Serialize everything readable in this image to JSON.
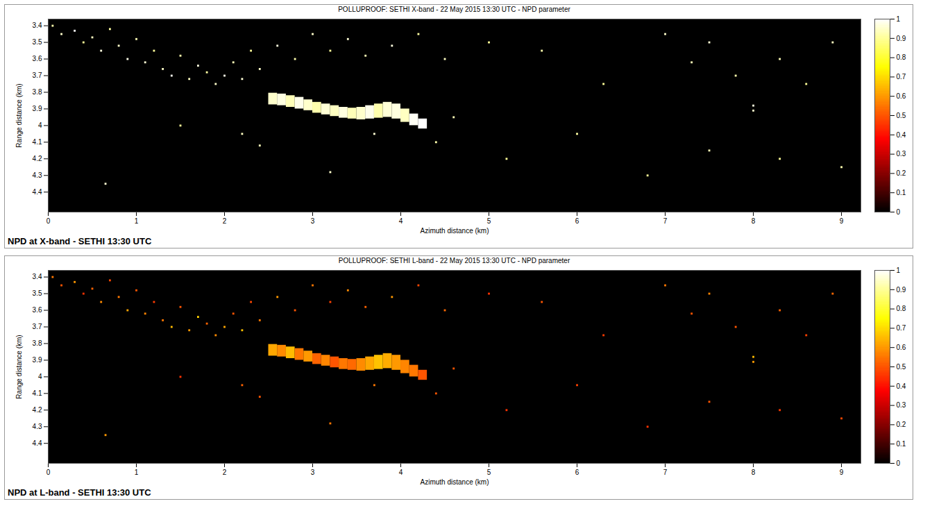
{
  "chart_data": [
    {
      "type": "heatmap",
      "title": "POLLUPROOF: SETHI X-band - 22 May 2015 13:30 UTC - NPD parameter",
      "caption": "NPD at X-band - SETHI 13:30 UTC",
      "xlabel": "Azimuth distance (km)",
      "ylabel": "Range distance (km)",
      "xlim": [
        0,
        9.22
      ],
      "ylim": [
        3.36,
        4.52
      ],
      "xticks": [
        0,
        1,
        2,
        3,
        4,
        5,
        6,
        7,
        8,
        9
      ],
      "yticks": [
        3.4,
        3.5,
        3.6,
        3.7,
        3.8,
        3.9,
        4,
        4.1,
        4.2,
        4.3,
        4.4
      ],
      "colorbar_range": [
        0,
        1
      ],
      "colorbar_ticks": [
        0,
        0.1,
        0.2,
        0.3,
        0.4,
        0.5,
        0.6,
        0.7,
        0.8,
        0.9,
        1
      ],
      "cells": [
        [
          2.5,
          2.6,
          3.805,
          3.875,
          0.95
        ],
        [
          2.6,
          2.7,
          3.81,
          3.88,
          0.97
        ],
        [
          2.7,
          2.8,
          3.82,
          3.89,
          0.93
        ],
        [
          2.8,
          2.9,
          3.83,
          3.9,
          0.98
        ],
        [
          2.9,
          3.0,
          3.845,
          3.91,
          0.95
        ],
        [
          3.0,
          3.1,
          3.86,
          3.925,
          0.92
        ],
        [
          3.1,
          3.2,
          3.87,
          3.935,
          0.96
        ],
        [
          3.2,
          3.3,
          3.88,
          3.945,
          0.94
        ],
        [
          3.3,
          3.4,
          3.89,
          3.955,
          0.97
        ],
        [
          3.4,
          3.5,
          3.895,
          3.96,
          0.93
        ],
        [
          3.5,
          3.6,
          3.89,
          3.965,
          0.95
        ],
        [
          3.6,
          3.7,
          3.88,
          3.96,
          0.98
        ],
        [
          3.7,
          3.8,
          3.87,
          3.955,
          0.92
        ],
        [
          3.8,
          3.9,
          3.86,
          3.95,
          0.96
        ],
        [
          3.9,
          4.0,
          3.87,
          3.96,
          0.97
        ],
        [
          4.0,
          4.1,
          3.9,
          3.98,
          0.94
        ],
        [
          4.1,
          4.2,
          3.93,
          4.0,
          0.99
        ],
        [
          4.2,
          4.3,
          3.96,
          4.02,
          1
        ]
      ],
      "points": [
        [
          0.05,
          3.4,
          0.92
        ],
        [
          0.15,
          3.45,
          0.95
        ],
        [
          0.3,
          3.43,
          1
        ],
        [
          0.4,
          3.5,
          0.9
        ],
        [
          0.5,
          3.47,
          0.94
        ],
        [
          0.6,
          3.55,
          0.97
        ],
        [
          0.7,
          3.42,
          0.91
        ],
        [
          0.8,
          3.52,
          0.95
        ],
        [
          0.9,
          3.6,
          0.98
        ],
        [
          1.0,
          3.48,
          0.93
        ],
        [
          1.1,
          3.62,
          0.96
        ],
        [
          1.2,
          3.55,
          0.9
        ],
        [
          1.3,
          3.66,
          0.95
        ],
        [
          1.4,
          3.7,
          0.99
        ],
        [
          1.5,
          3.58,
          0.92
        ],
        [
          1.6,
          3.72,
          0.94
        ],
        [
          1.7,
          3.64,
          0.97
        ],
        [
          1.8,
          3.68,
          0.91
        ],
        [
          1.9,
          3.75,
          0.95
        ],
        [
          2.0,
          3.7,
          0.98
        ],
        [
          2.1,
          3.62,
          0.93
        ],
        [
          2.2,
          3.72,
          0.96
        ],
        [
          2.3,
          3.55,
          0.9
        ],
        [
          2.4,
          3.66,
          0.95
        ],
        [
          2.6,
          3.52,
          0.97
        ],
        [
          2.8,
          3.6,
          0.92
        ],
        [
          3.0,
          3.45,
          0.95
        ],
        [
          3.2,
          3.55,
          0.9
        ],
        [
          3.4,
          3.48,
          0.96
        ],
        [
          3.6,
          3.58,
          0.93
        ],
        [
          3.9,
          3.52,
          0.97
        ],
        [
          4.2,
          3.45,
          0.91
        ],
        [
          4.5,
          3.6,
          0.94
        ],
        [
          5.0,
          3.5,
          0.9
        ],
        [
          5.6,
          3.55,
          0.92
        ],
        [
          6.3,
          3.75,
          0.9
        ],
        [
          7.0,
          3.45,
          0.95
        ],
        [
          7.3,
          3.62,
          0.93
        ],
        [
          7.5,
          3.5,
          0.96
        ],
        [
          7.8,
          3.7,
          0.92
        ],
        [
          8.0,
          3.88,
          0.97
        ],
        [
          8.0,
          3.91,
          0.95
        ],
        [
          8.3,
          3.6,
          0.93
        ],
        [
          8.6,
          3.75,
          0.9
        ],
        [
          8.9,
          3.5,
          0.94
        ],
        [
          0.65,
          4.35,
          0.96
        ],
        [
          1.5,
          4.0,
          0.9
        ],
        [
          2.4,
          4.12,
          0.93
        ],
        [
          3.2,
          4.28,
          0.95
        ],
        [
          4.4,
          4.1,
          0.92
        ],
        [
          5.2,
          4.2,
          0.9
        ],
        [
          6.0,
          4.05,
          0.91
        ],
        [
          6.8,
          4.3,
          0.9
        ],
        [
          7.5,
          4.15,
          0.93
        ],
        [
          8.3,
          4.2,
          0.9
        ],
        [
          9.0,
          4.25,
          0.92
        ],
        [
          2.2,
          4.05,
          0.94
        ],
        [
          3.7,
          4.05,
          0.96
        ],
        [
          4.6,
          3.95,
          0.93
        ]
      ]
    },
    {
      "type": "heatmap",
      "title": "POLLUPROOF: SETHI L-band - 22 May 2015 13:30 UTC - NPD parameter",
      "caption": "NPD at L-band - SETHI 13:30 UTC",
      "xlabel": "Azimuth distance (km)",
      "ylabel": "Range distance (km)",
      "xlim": [
        0,
        9.22
      ],
      "ylim": [
        3.36,
        4.52
      ],
      "xticks": [
        0,
        1,
        2,
        3,
        4,
        5,
        6,
        7,
        8,
        9
      ],
      "yticks": [
        3.4,
        3.5,
        3.6,
        3.7,
        3.8,
        3.9,
        4,
        4.1,
        4.2,
        4.3,
        4.4
      ],
      "colorbar_range": [
        0,
        1
      ],
      "colorbar_ticks": [
        0,
        0.1,
        0.2,
        0.3,
        0.4,
        0.5,
        0.6,
        0.7,
        0.8,
        0.9,
        1
      ],
      "cells": [
        [
          2.5,
          2.6,
          3.805,
          3.875,
          0.62
        ],
        [
          2.6,
          2.7,
          3.81,
          3.88,
          0.58
        ],
        [
          2.7,
          2.8,
          3.82,
          3.89,
          0.65
        ],
        [
          2.8,
          2.9,
          3.83,
          3.9,
          0.55
        ],
        [
          2.9,
          3.0,
          3.845,
          3.91,
          0.6
        ],
        [
          3.0,
          3.1,
          3.86,
          3.925,
          0.52
        ],
        [
          3.1,
          3.2,
          3.87,
          3.935,
          0.57
        ],
        [
          3.2,
          3.3,
          3.88,
          3.945,
          0.5
        ],
        [
          3.3,
          3.4,
          3.89,
          3.955,
          0.55
        ],
        [
          3.4,
          3.5,
          3.895,
          3.96,
          0.53
        ],
        [
          3.5,
          3.6,
          3.89,
          3.965,
          0.58
        ],
        [
          3.6,
          3.7,
          3.88,
          3.96,
          0.62
        ],
        [
          3.7,
          3.8,
          3.87,
          3.955,
          0.66
        ],
        [
          3.8,
          3.9,
          3.86,
          3.95,
          0.63
        ],
        [
          3.9,
          4.0,
          3.87,
          3.96,
          0.6
        ],
        [
          4.0,
          4.1,
          3.9,
          3.98,
          0.57
        ],
        [
          4.1,
          4.2,
          3.93,
          4.0,
          0.55
        ],
        [
          4.2,
          4.3,
          3.96,
          4.02,
          0.5
        ]
      ],
      "points": [
        [
          0.05,
          3.4,
          0.55
        ],
        [
          0.15,
          3.45,
          0.5
        ],
        [
          0.3,
          3.43,
          0.6
        ],
        [
          0.4,
          3.5,
          0.45
        ],
        [
          0.5,
          3.47,
          0.52
        ],
        [
          0.6,
          3.55,
          0.58
        ],
        [
          0.7,
          3.42,
          0.48
        ],
        [
          0.8,
          3.52,
          0.55
        ],
        [
          0.9,
          3.6,
          0.62
        ],
        [
          1.0,
          3.48,
          0.5
        ],
        [
          1.1,
          3.62,
          0.57
        ],
        [
          1.2,
          3.55,
          0.46
        ],
        [
          1.3,
          3.66,
          0.55
        ],
        [
          1.4,
          3.7,
          0.65
        ],
        [
          1.5,
          3.58,
          0.5
        ],
        [
          1.6,
          3.72,
          0.6
        ],
        [
          1.7,
          3.64,
          0.68
        ],
        [
          1.8,
          3.68,
          0.52
        ],
        [
          1.9,
          3.75,
          0.58
        ],
        [
          2.0,
          3.7,
          0.62
        ],
        [
          2.1,
          3.62,
          0.5
        ],
        [
          2.2,
          3.72,
          0.66
        ],
        [
          2.3,
          3.55,
          0.48
        ],
        [
          2.4,
          3.66,
          0.55
        ],
        [
          2.6,
          3.52,
          0.6
        ],
        [
          2.8,
          3.6,
          0.5
        ],
        [
          3.0,
          3.45,
          0.55
        ],
        [
          3.2,
          3.55,
          0.47
        ],
        [
          3.4,
          3.48,
          0.58
        ],
        [
          3.6,
          3.58,
          0.52
        ],
        [
          3.9,
          3.52,
          0.6
        ],
        [
          4.2,
          3.45,
          0.48
        ],
        [
          4.5,
          3.6,
          0.53
        ],
        [
          5.0,
          3.5,
          0.45
        ],
        [
          5.6,
          3.55,
          0.5
        ],
        [
          6.3,
          3.75,
          0.46
        ],
        [
          7.0,
          3.45,
          0.55
        ],
        [
          7.3,
          3.62,
          0.5
        ],
        [
          7.5,
          3.5,
          0.57
        ],
        [
          7.8,
          3.7,
          0.5
        ],
        [
          8.0,
          3.88,
          0.65
        ],
        [
          8.0,
          3.91,
          0.6
        ],
        [
          8.3,
          3.6,
          0.52
        ],
        [
          8.6,
          3.75,
          0.47
        ],
        [
          8.9,
          3.5,
          0.53
        ],
        [
          0.65,
          4.35,
          0.6
        ],
        [
          1.5,
          4.0,
          0.45
        ],
        [
          2.4,
          4.12,
          0.5
        ],
        [
          3.2,
          4.28,
          0.55
        ],
        [
          4.4,
          4.1,
          0.5
        ],
        [
          5.2,
          4.2,
          0.45
        ],
        [
          6.0,
          4.05,
          0.47
        ],
        [
          6.8,
          4.3,
          0.45
        ],
        [
          7.5,
          4.15,
          0.5
        ],
        [
          8.3,
          4.2,
          0.46
        ],
        [
          9.0,
          4.25,
          0.48
        ],
        [
          2.2,
          4.05,
          0.52
        ],
        [
          3.7,
          4.05,
          0.55
        ],
        [
          4.6,
          3.95,
          0.5
        ]
      ]
    }
  ]
}
